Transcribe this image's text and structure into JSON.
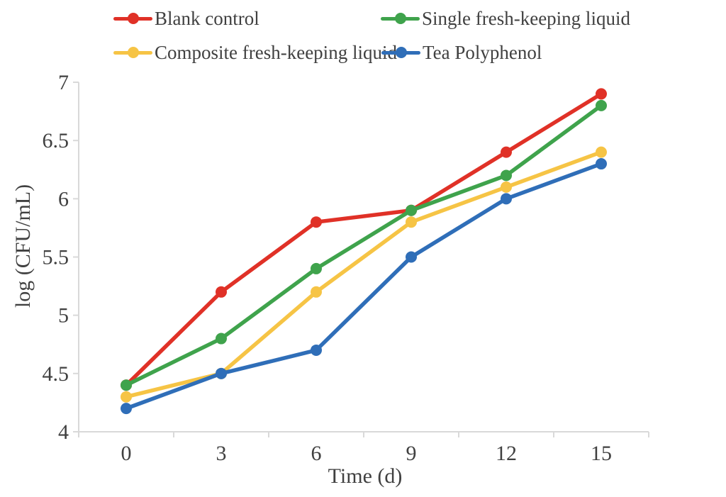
{
  "figure": {
    "background": "#ffffff",
    "text_color": "#404040",
    "axis_color": "#d9d9d9"
  },
  "legend": {
    "position": "top",
    "items": [
      {
        "label": "Blank control",
        "color": "#e03127",
        "marker": "line-dot-icon"
      },
      {
        "label": "Single fresh-keeping liquid",
        "color": "#3fa34c",
        "marker": "line-dot-icon"
      },
      {
        "label": "Composite fresh-keeping liquid",
        "color": "#f6c445",
        "marker": "line-dot-icon"
      },
      {
        "label": "Tea Polyphenol",
        "color": "#2f6eb8",
        "marker": "line-dot-icon"
      }
    ]
  },
  "chart_data": {
    "type": "line",
    "title": "",
    "xlabel": "Time (d)",
    "ylabel": "log (CFU/mL)",
    "categories": [
      0,
      3,
      6,
      9,
      12,
      15
    ],
    "x_tick_labels": [
      "0",
      "3",
      "6",
      "9",
      "12",
      "15"
    ],
    "y_ticks": [
      4,
      4.5,
      5,
      5.5,
      6,
      6.5,
      7
    ],
    "y_tick_labels": [
      "4",
      "4.5",
      "5",
      "5.5",
      "6",
      "6.5",
      "7"
    ],
    "ylim": [
      4,
      7
    ],
    "grid": false,
    "legend_position": "top",
    "marker": "circle",
    "series": [
      {
        "name": "Blank control",
        "color": "#e03127",
        "values": [
          4.4,
          5.2,
          5.8,
          5.9,
          6.4,
          6.9
        ]
      },
      {
        "name": "Single fresh-keeping liquid",
        "color": "#3fa34c",
        "values": [
          4.4,
          4.8,
          5.4,
          5.9,
          6.2,
          6.8
        ]
      },
      {
        "name": "Composite fresh-keeping liquid",
        "color": "#f6c445",
        "values": [
          4.3,
          4.5,
          5.2,
          5.8,
          6.1,
          6.4
        ]
      },
      {
        "name": "Tea Polyphenol",
        "color": "#2f6eb8",
        "values": [
          4.2,
          4.5,
          4.7,
          5.5,
          6.0,
          6.3
        ]
      }
    ]
  }
}
